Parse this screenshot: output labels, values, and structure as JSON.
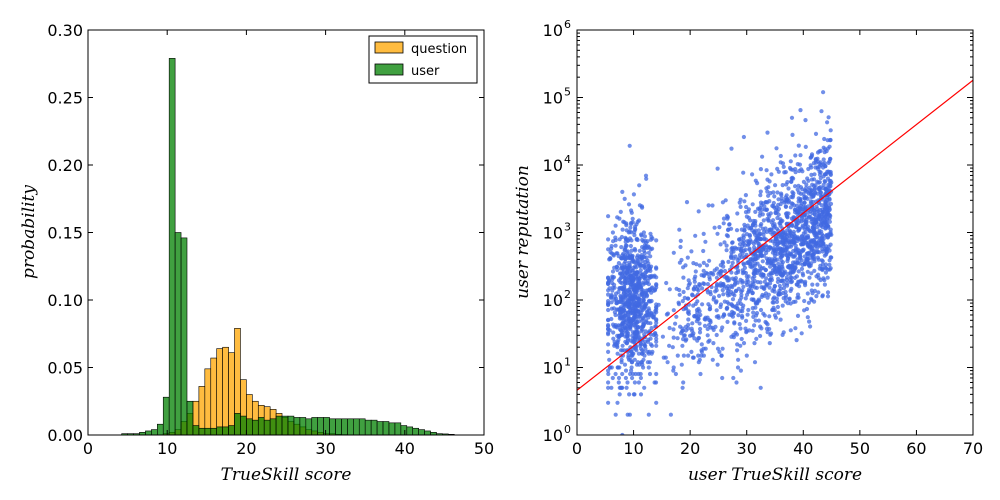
{
  "chart_data": [
    {
      "type": "bar",
      "subtype": "histogram",
      "xlabel": "TrueSkill score",
      "ylabel": "probability",
      "xlim": [
        0,
        50
      ],
      "ylim": [
        0,
        0.3
      ],
      "xticks": [
        "0",
        "10",
        "20",
        "30",
        "40",
        "50"
      ],
      "yticks": [
        "0.00",
        "0.05",
        "0.10",
        "0.15",
        "0.20",
        "0.25",
        "0.30"
      ],
      "bin_width": 0.75,
      "legend": {
        "placement": "top-right",
        "entries": [
          "question",
          "user"
        ]
      },
      "colors": {
        "question": "#FFA500",
        "user": "#008000"
      },
      "series": [
        {
          "name": "question",
          "x": [
            9.5,
            10.25,
            11.0,
            11.75,
            12.5,
            13.25,
            14.0,
            14.75,
            15.5,
            16.25,
            17.0,
            17.75,
            18.5,
            19.25,
            20.0,
            20.75,
            21.5,
            22.25,
            23.0,
            23.75,
            24.5,
            25.25,
            26.0,
            26.75,
            27.5,
            28.25,
            29.0,
            29.75,
            30.5,
            31.25,
            32.0
          ],
          "values": [
            0.001,
            0.002,
            0.004,
            0.01,
            0.016,
            0.025,
            0.036,
            0.049,
            0.057,
            0.064,
            0.065,
            0.061,
            0.079,
            0.041,
            0.03,
            0.025,
            0.022,
            0.021,
            0.019,
            0.016,
            0.013,
            0.01,
            0.008,
            0.006,
            0.004,
            0.003,
            0.002,
            0.001,
            0.001,
            0.0005,
            0.0003
          ]
        },
        {
          "name": "user",
          "x": [
            4.25,
            5.0,
            5.75,
            6.5,
            7.25,
            8.0,
            8.75,
            9.5,
            10.25,
            11.0,
            11.75,
            12.5,
            13.25,
            14.0,
            14.75,
            15.5,
            16.25,
            17.0,
            17.75,
            18.5,
            19.25,
            20.0,
            20.75,
            21.5,
            22.25,
            23.0,
            23.75,
            24.5,
            25.25,
            26.0,
            26.75,
            27.5,
            28.25,
            29.0,
            29.75,
            30.5,
            31.25,
            32.0,
            32.75,
            33.5,
            34.25,
            35.0,
            35.75,
            36.5,
            37.25,
            38.0,
            38.75,
            39.5,
            40.25,
            41.0,
            41.75,
            42.5,
            43.25,
            44.0,
            44.75,
            45.5
          ],
          "values": [
            0.001,
            0.001,
            0.001,
            0.002,
            0.003,
            0.004,
            0.008,
            0.028,
            0.279,
            0.15,
            0.146,
            0.025,
            0.007,
            0.005,
            0.005,
            0.005,
            0.006,
            0.006,
            0.007,
            0.016,
            0.014,
            0.012,
            0.011,
            0.013,
            0.011,
            0.012,
            0.014,
            0.014,
            0.014,
            0.013,
            0.013,
            0.012,
            0.013,
            0.013,
            0.013,
            0.012,
            0.012,
            0.012,
            0.012,
            0.012,
            0.012,
            0.011,
            0.011,
            0.01,
            0.01,
            0.009,
            0.009,
            0.007,
            0.006,
            0.005,
            0.004,
            0.003,
            0.002,
            0.001,
            0.0008,
            0.0005
          ]
        }
      ]
    },
    {
      "type": "scatter",
      "xlabel": "user TrueSkill score",
      "ylabel": "user reputation",
      "xlim": [
        0,
        70
      ],
      "ylim": [
        1,
        1000000
      ],
      "yscale": "log",
      "xticks": [
        "0",
        "10",
        "20",
        "30",
        "40",
        "50",
        "60",
        "70"
      ],
      "yticks": [
        {
          "base": "10",
          "exp": "0"
        },
        {
          "base": "10",
          "exp": "1"
        },
        {
          "base": "10",
          "exp": "2"
        },
        {
          "base": "10",
          "exp": "3"
        },
        {
          "base": "10",
          "exp": "4"
        },
        {
          "base": "10",
          "exp": "5"
        },
        {
          "base": "10",
          "exp": "6"
        }
      ],
      "point_color": "#4169E1",
      "fit_line_color": "#FF0000",
      "fit_line": {
        "x": [
          0,
          70
        ],
        "y": [
          4.6,
          180000
        ]
      },
      "point_clusters": [
        {
          "x_range": [
            5.5,
            14
          ],
          "log10y_center": 2.0,
          "log10y_spread": 0.6,
          "count": 900
        },
        {
          "x_range": [
            14,
            45
          ],
          "log10y_at_x14": 1.5,
          "log10y_at_x45": 3.3,
          "log10y_spread": 0.55,
          "count": 1700
        }
      ],
      "point_outliers": [
        {
          "x": 43.5,
          "y": 120000
        },
        {
          "x": 39.5,
          "y": 65000
        },
        {
          "x": 29.5,
          "y": 26000
        },
        {
          "x": 38.0,
          "y": 50000
        },
        {
          "x": 8.0,
          "y": 4000
        },
        {
          "x": 11.0,
          "y": 5000
        }
      ]
    }
  ]
}
